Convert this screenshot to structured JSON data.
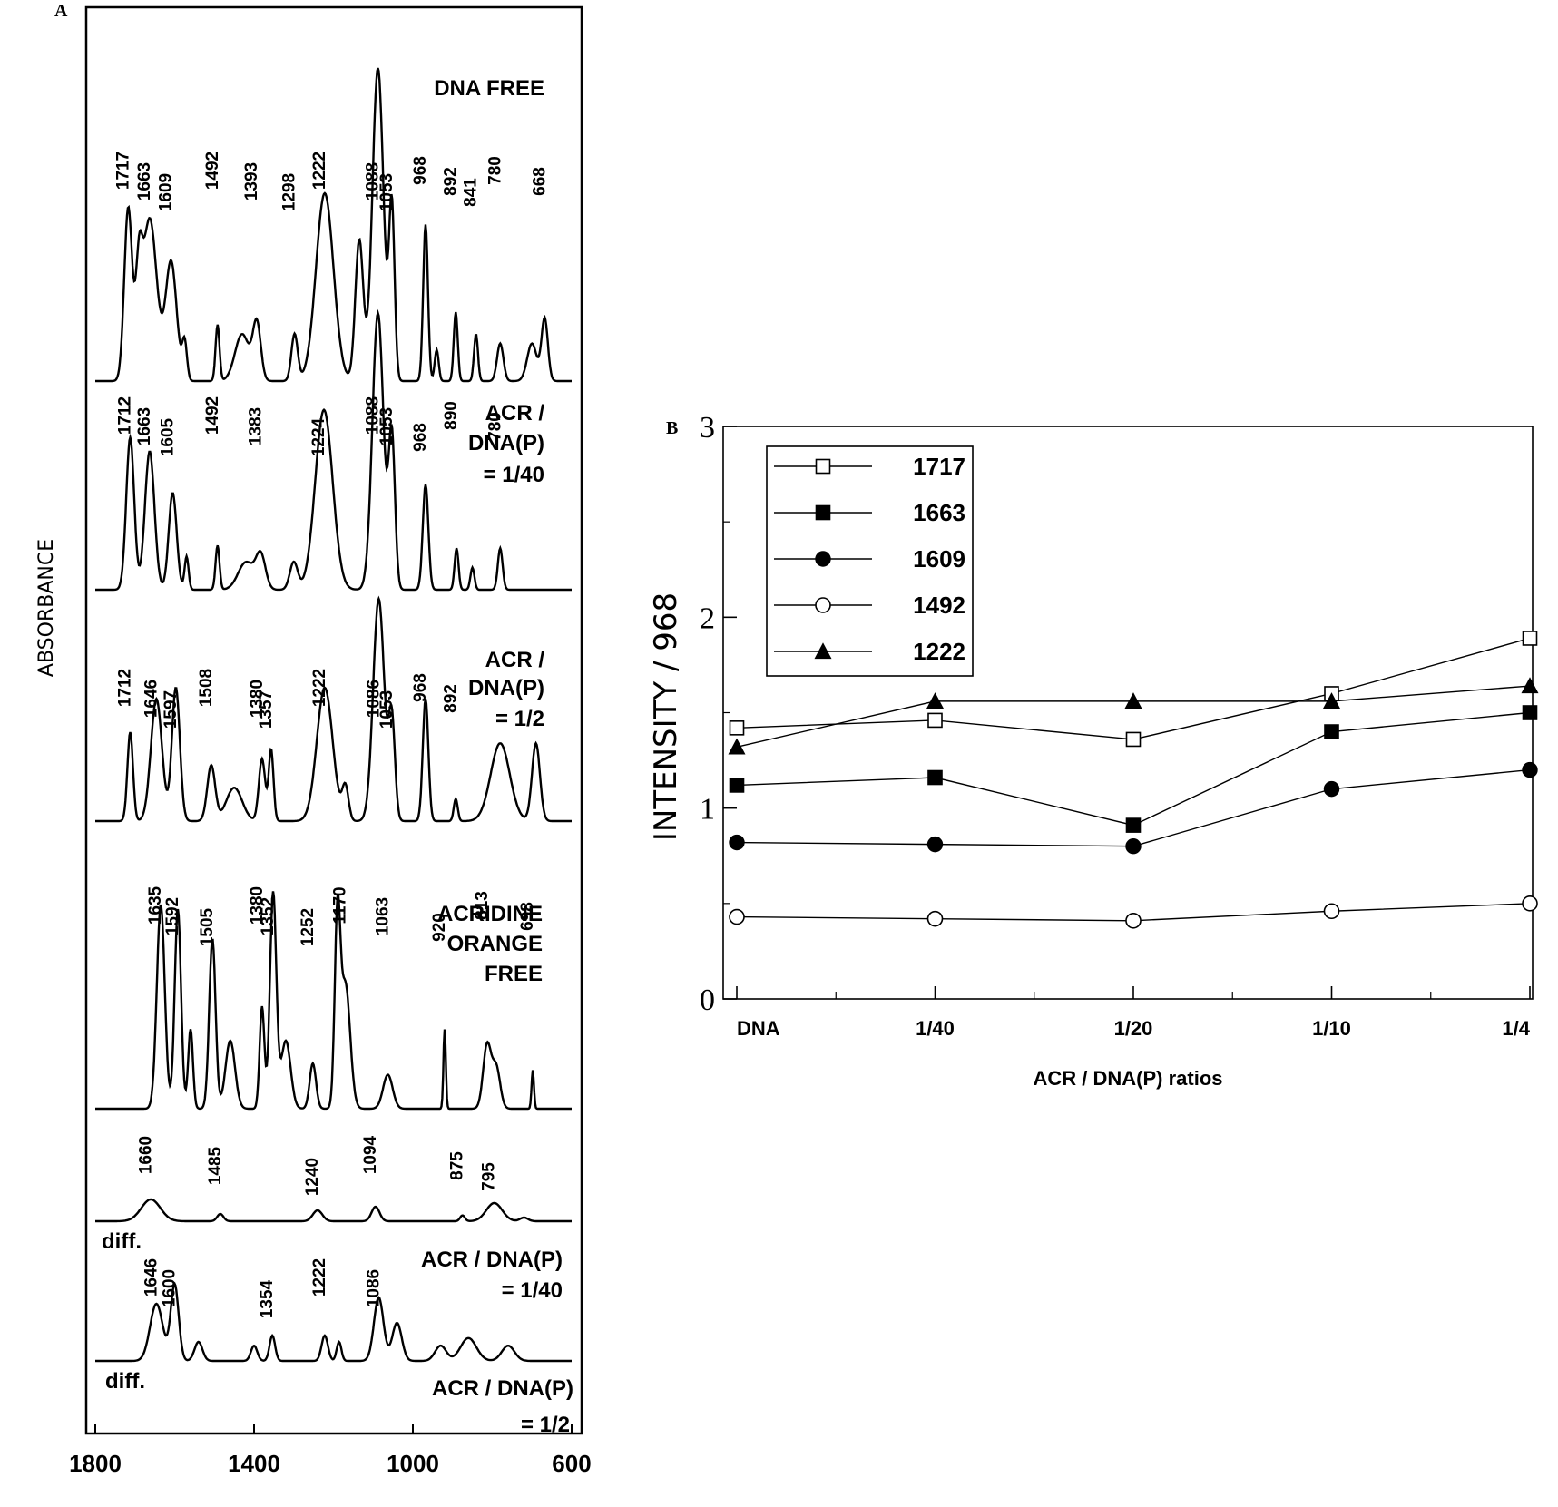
{
  "panel_a": {
    "letter": "A",
    "ylabel": "ABSORBANCE",
    "x_ticks": [
      "1800",
      "1400",
      "1000",
      "600"
    ],
    "x_range": [
      1800,
      600
    ],
    "traces": [
      {
        "labels": [
          "DNA FREE"
        ],
        "peaks": [
          "1717",
          "1663",
          "1609",
          "1492",
          "1393",
          "1298",
          "1222",
          "1088",
          "1053",
          "968",
          "892",
          "841",
          "780",
          "668"
        ]
      },
      {
        "labels": [
          "ACR /",
          "DNA(P)",
          "= 1/40"
        ],
        "peaks": [
          "1712",
          "1663",
          "1605",
          "1492",
          "1383",
          "1224",
          "1088",
          "1053",
          "968",
          "890",
          "780"
        ]
      },
      {
        "labels": [
          "ACR /",
          "DNA(P)",
          "= 1/2"
        ],
        "peaks": [
          "1712",
          "1646",
          "1597",
          "1508",
          "1380",
          "1357",
          "1222",
          "1086",
          "1053",
          "968",
          "892"
        ]
      },
      {
        "labels": [
          "ACRIDINE",
          "ORANGE",
          "FREE"
        ],
        "peaks": [
          "1635",
          "1592",
          "1505",
          "1380",
          "1352",
          "1252",
          "1170",
          "1063",
          "920",
          "813",
          "698"
        ]
      },
      {
        "labels": [
          "diff.",
          "ACR / DNA(P)",
          "= 1/40"
        ],
        "peaks": [
          "1660",
          "1485",
          "1240",
          "1094",
          "875",
          "795"
        ]
      },
      {
        "labels": [
          "diff.",
          "ACR / DNA(P)",
          "= 1/2"
        ],
        "peaks": [
          "1646",
          "1600",
          "1354",
          "1222",
          "1086"
        ]
      }
    ]
  },
  "chart_data": {
    "type": "line",
    "title": "",
    "panel_letter": "B",
    "xlabel": "ACR / DNA(P)  ratios",
    "ylabel": "INTENSITY / 968",
    "categories": [
      "DNA",
      "1/40",
      "1/20",
      "1/10",
      "1/4"
    ],
    "ylim": [
      0,
      3
    ],
    "y_ticks": [
      "0",
      "1",
      "2",
      "3"
    ],
    "legend_position": "top-left",
    "series": [
      {
        "name": "1717",
        "marker": "open-square",
        "values": [
          1.42,
          1.46,
          1.36,
          1.6,
          1.89
        ]
      },
      {
        "name": "1663",
        "marker": "filled-square",
        "values": [
          1.12,
          1.16,
          0.91,
          1.4,
          1.5
        ]
      },
      {
        "name": "1609",
        "marker": "filled-circle",
        "values": [
          0.82,
          0.81,
          0.8,
          1.1,
          1.2
        ]
      },
      {
        "name": "1492",
        "marker": "open-circle",
        "values": [
          0.43,
          0.42,
          0.41,
          0.46,
          0.5
        ]
      },
      {
        "name": "1222",
        "marker": "filled-triangle",
        "values": [
          1.32,
          1.56,
          1.56,
          1.56,
          1.64
        ]
      }
    ]
  }
}
